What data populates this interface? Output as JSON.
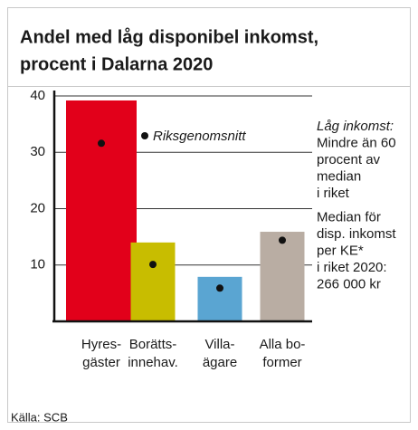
{
  "chart_data": {
    "type": "bar",
    "title": [
      "Andel med låg disponibel inkomst,",
      "procent i Dalarna 2020"
    ],
    "categories": [
      [
        "Hyres-",
        "gäster"
      ],
      [
        "Borätts-",
        "innehav."
      ],
      [
        "Villa-",
        "ägare"
      ],
      [
        "Alla bo-",
        "former"
      ]
    ],
    "values": [
      39.2,
      14,
      7.9,
      15.9
    ],
    "colors": [
      "#e2001a",
      "#c8bd00",
      "#5aa5d2",
      "#b9ada3"
    ],
    "markers": {
      "name": "Riksgenomsnitt",
      "color": "#111111",
      "values": [
        31.6,
        10.1,
        5.9,
        14.4
      ]
    },
    "ylim": [
      0,
      40
    ],
    "yticks": [
      10,
      20,
      30,
      40
    ],
    "grid": true,
    "annotations": [
      [
        "Låg inkomst:",
        "Mindre än 60",
        "procent av",
        "median",
        "i riket"
      ],
      [
        "Median för",
        "disp. inkomst",
        "per KE*",
        "i riket 2020:",
        "266 000 kr"
      ]
    ],
    "source": "Källa: SCB"
  }
}
